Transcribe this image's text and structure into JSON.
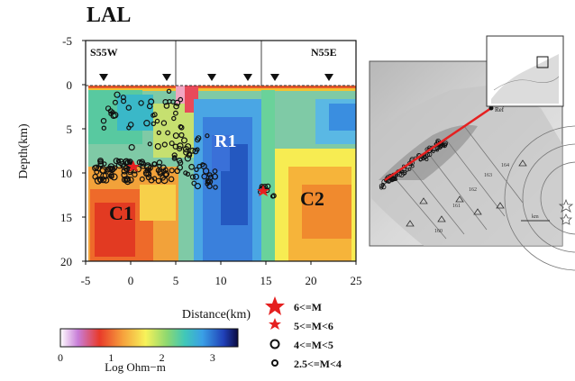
{
  "title": "LAL",
  "section": {
    "left_label": "S55W",
    "right_label": "N55E",
    "ylabel": "Depth(km)",
    "xlabel": "Distance(km)",
    "y_ticks": [
      "-5",
      "0",
      "5",
      "10",
      "15",
      "20"
    ],
    "x_ticks": [
      "-5",
      "0",
      "5",
      "10",
      "15",
      "20",
      "25"
    ],
    "xlim": [
      -5,
      25
    ],
    "ylim": [
      -5,
      20
    ],
    "annotations": [
      "R1",
      "C1",
      "C2"
    ],
    "station_distances_km": [
      -3,
      4,
      9,
      13,
      16,
      22
    ]
  },
  "colorbar": {
    "label": "Log Ohm−m",
    "ticks": [
      "0",
      "1",
      "2",
      "3"
    ],
    "colors": [
      "#ffffff",
      "#c87dd8",
      "#e83a2a",
      "#f6a03c",
      "#f7f25a",
      "#8ed870",
      "#40c8b8",
      "#3aa0e6",
      "#2040b8",
      "#0a0a40"
    ]
  },
  "legend": {
    "items": [
      {
        "label": "6<=M",
        "symbol": "large-star"
      },
      {
        "label": "5<=M<6",
        "symbol": "small-star"
      },
      {
        "label": "4<=M<5",
        "symbol": "large-circle"
      },
      {
        "label": "2.5<=M<4",
        "symbol": "small-circle"
      }
    ]
  },
  "map": {
    "station": "Ref",
    "contour_labels": [
      "160",
      "161",
      "162",
      "163",
      "164"
    ],
    "scale": "km"
  }
}
